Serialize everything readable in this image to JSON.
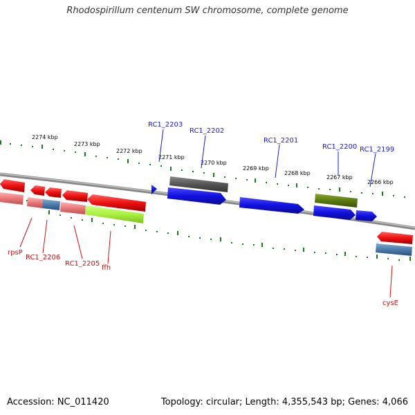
{
  "title": "Rhodospirillum centenum SW chromosome, complete genome",
  "footer": {
    "accession": "Accession: NC_011420",
    "topology": "Topology: circular; Length: 4,355,543 bp; Genes: 4,066"
  },
  "kbp_labels": [
    "2274 kbp",
    "2273 kbp",
    "2272 kbp",
    "2271 kbp",
    "2270 kbp",
    "2269 kbp",
    "2268 kbp",
    "2267 kbp",
    "2266 kbp"
  ],
  "top_gene_labels": [
    "RC1_2203",
    "RC1_2202",
    "RC1_2201",
    "RC1_2200",
    "RC1_2199"
  ],
  "bottom_gene_labels": [
    "rpsP",
    "RC1_2206",
    "RC1_2205",
    "ffh",
    "cysE"
  ],
  "colors": {
    "blue": "#1010e0",
    "red": "#ee1010",
    "gray": "#555555",
    "olive": "#5a7a10",
    "pink": "#e87878",
    "steel": "#4a7aaa",
    "lime": "#a8f040",
    "tick": "#1a7a1a"
  }
}
